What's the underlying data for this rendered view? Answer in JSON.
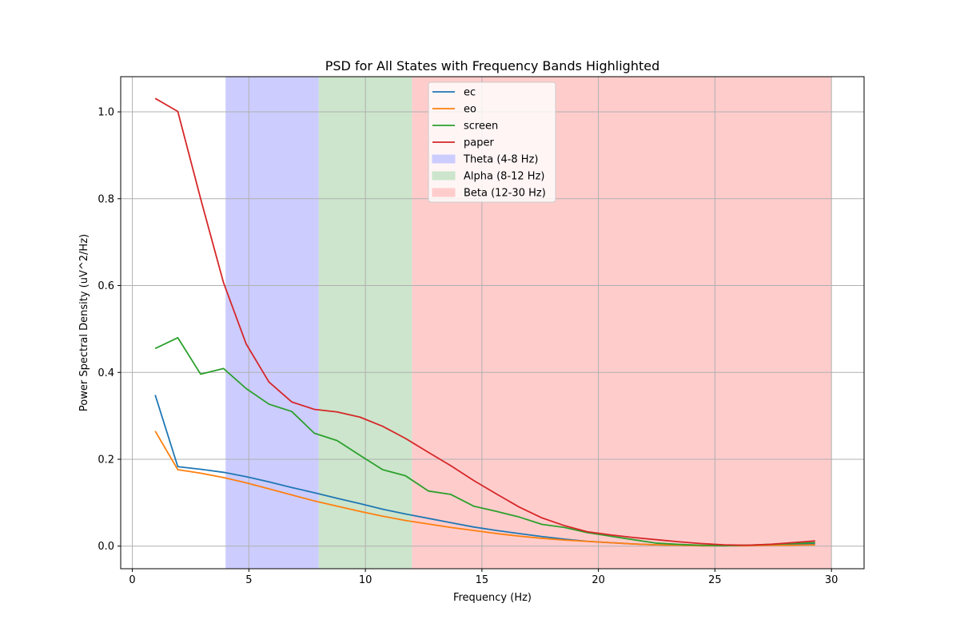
{
  "chart_data": {
    "type": "line",
    "title": "PSD for All States with Frequency Bands Highlighted",
    "xlabel": "Frequency (Hz)",
    "ylabel": "Power Spectral Density (uV^2/Hz)",
    "xlim": [
      -0.5,
      31.4
    ],
    "ylim": [
      -0.052,
      1.081
    ],
    "xticks": [
      0,
      5,
      10,
      15,
      20,
      25,
      30
    ],
    "yticks": [
      0.0,
      0.2,
      0.4,
      0.6,
      0.8,
      1.0
    ],
    "xtick_labels": [
      "0",
      "5",
      "10",
      "15",
      "20",
      "25",
      "30"
    ],
    "ytick_labels": [
      "0.0",
      "0.2",
      "0.4",
      "0.6",
      "0.8",
      "1.0"
    ],
    "grid": true,
    "legend_position": "top-center",
    "bands": [
      {
        "name": "Theta (4-8 Hz)",
        "range": [
          4,
          8
        ],
        "color": "#ccccff"
      },
      {
        "name": "Alpha (8-12 Hz)",
        "range": [
          8,
          12
        ],
        "color": "#cce5cc"
      },
      {
        "name": "Beta (12-30 Hz)",
        "range": [
          12,
          30
        ],
        "color": "#ffcccc"
      }
    ],
    "x": [
      0.98,
      1.95,
      2.93,
      3.91,
      4.88,
      5.86,
      6.84,
      7.81,
      8.79,
      9.77,
      10.74,
      11.72,
      12.7,
      13.67,
      14.65,
      15.63,
      16.6,
      17.58,
      18.55,
      19.53,
      20.51,
      21.48,
      22.46,
      23.44,
      24.41,
      25.39,
      26.37,
      27.34,
      28.32,
      29.3
    ],
    "series": [
      {
        "name": "ec",
        "color": "#1f77b4",
        "values": [
          0.348,
          0.183,
          0.177,
          0.17,
          0.16,
          0.148,
          0.135,
          0.123,
          0.11,
          0.098,
          0.085,
          0.074,
          0.064,
          0.054,
          0.044,
          0.036,
          0.029,
          0.022,
          0.016,
          0.011,
          0.008,
          0.005,
          0.003,
          0.002,
          0.001,
          0.001,
          0.002,
          0.003,
          0.004,
          0.005
        ]
      },
      {
        "name": "eo",
        "color": "#ff7f0e",
        "values": [
          0.265,
          0.176,
          0.168,
          0.158,
          0.146,
          0.132,
          0.118,
          0.104,
          0.092,
          0.08,
          0.069,
          0.059,
          0.051,
          0.043,
          0.036,
          0.029,
          0.023,
          0.018,
          0.014,
          0.011,
          0.008,
          0.005,
          0.003,
          0.002,
          0.001,
          0.001,
          0.001,
          0.002,
          0.002,
          0.003
        ]
      },
      {
        "name": "screen",
        "color": "#2ca02c",
        "values": [
          0.455,
          0.48,
          0.396,
          0.409,
          0.363,
          0.327,
          0.31,
          0.26,
          0.243,
          0.209,
          0.176,
          0.162,
          0.127,
          0.119,
          0.092,
          0.08,
          0.067,
          0.05,
          0.043,
          0.031,
          0.023,
          0.015,
          0.007,
          0.004,
          0.002,
          0.001,
          0.002,
          0.004,
          0.006,
          0.008
        ]
      },
      {
        "name": "paper",
        "color": "#d62728",
        "values": [
          1.031,
          1.001,
          0.8,
          0.607,
          0.466,
          0.378,
          0.332,
          0.315,
          0.309,
          0.297,
          0.276,
          0.248,
          0.216,
          0.185,
          0.151,
          0.12,
          0.09,
          0.065,
          0.047,
          0.033,
          0.026,
          0.02,
          0.015,
          0.01,
          0.006,
          0.003,
          0.002,
          0.004,
          0.008,
          0.012
        ]
      }
    ]
  }
}
